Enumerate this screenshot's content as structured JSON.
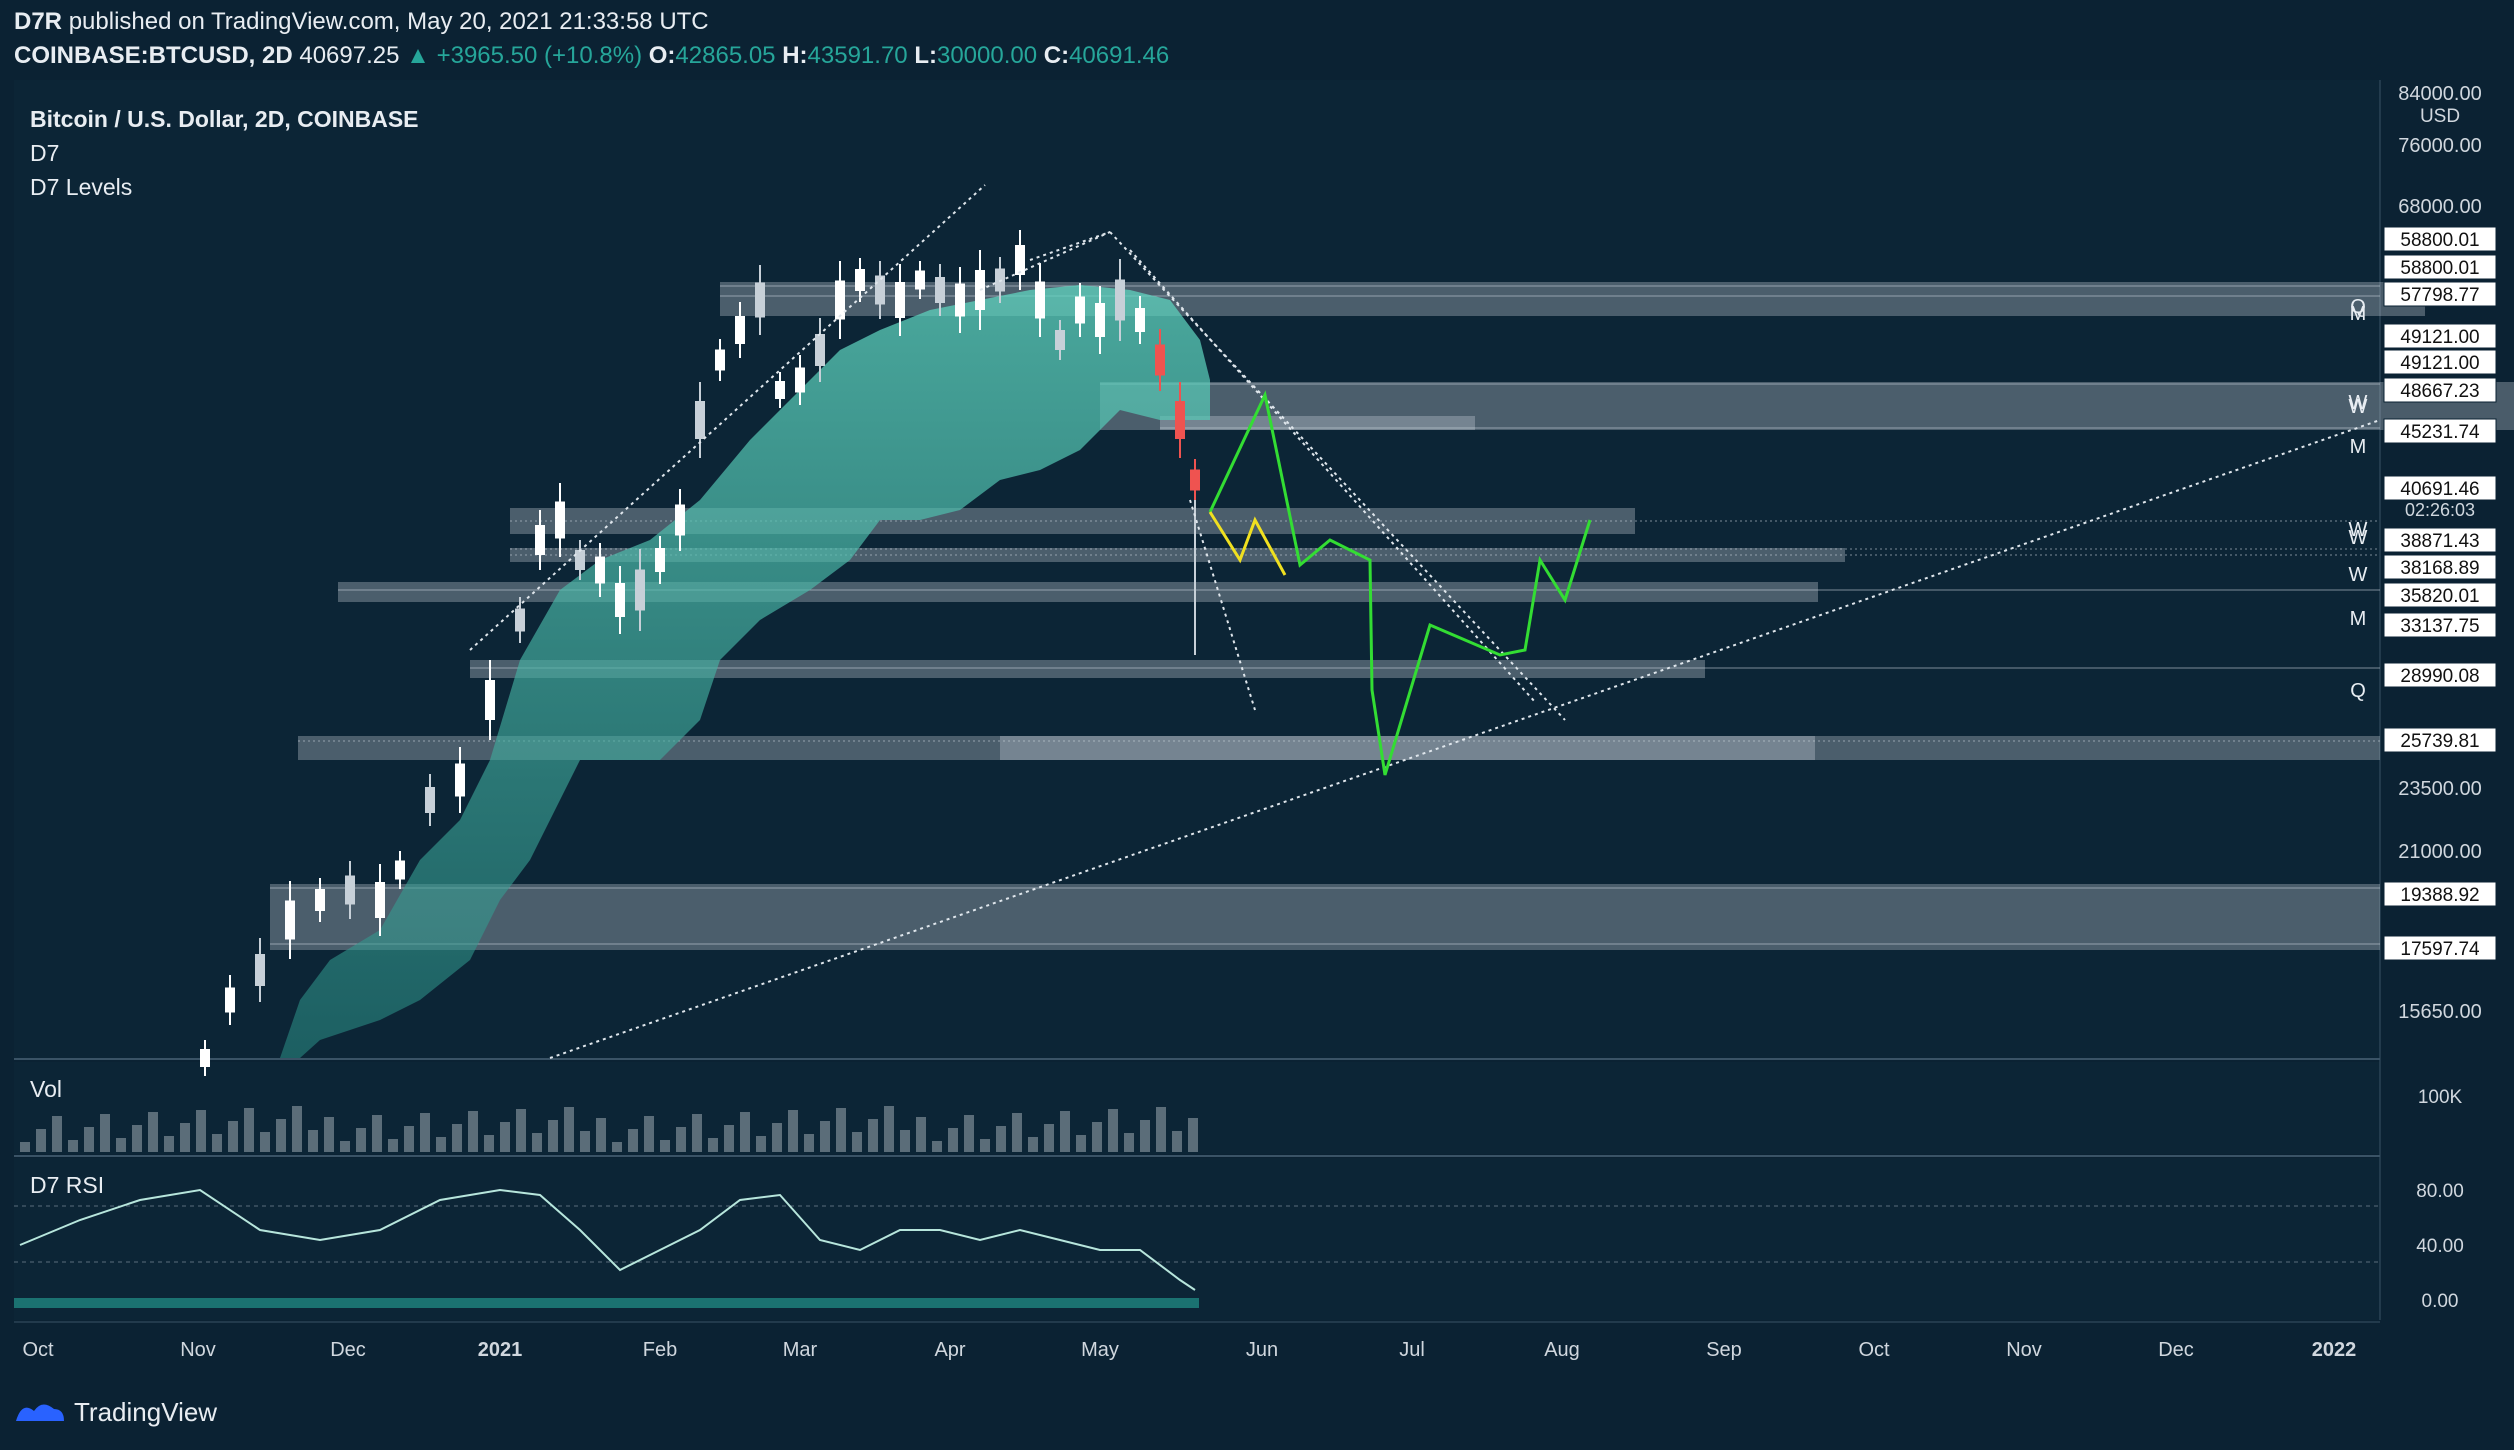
{
  "header": {
    "author": "D7R",
    "published": "published on TradingView.com, May 20, 2021 21:33:58 UTC",
    "symbol": "COINBASE:BTCUSD, 2D",
    "last": "40697.25",
    "change": "+3965.50 (+10.8%)",
    "o_label": "O:",
    "o": "42865.05",
    "h_label": "H:",
    "h": "43591.70",
    "l_label": "L:",
    "l": "30000.00",
    "c_label": "C:",
    "c": "40691.46"
  },
  "legend": {
    "title": "Bitcoin / U.S. Dollar, 2D, COINBASE",
    "ind1": "D7",
    "ind2": "D7 Levels",
    "vol": "Vol",
    "rsi": "D7 RSI"
  },
  "footer": {
    "brand": "TradingView"
  },
  "colors": {
    "bg": "#0b2233",
    "up": "#26a69a",
    "down": "#ef5350",
    "cloud": "#4fc3b0",
    "forecast_green": "#33dd33",
    "forecast_yellow": "#f0e020"
  },
  "chart_data": {
    "type": "candlestick",
    "currency": "USD",
    "y_axis_ticks": [
      "84000.00",
      "76000.00",
      "68000.00",
      "23500.00",
      "21000.00",
      "15650.00"
    ],
    "price_labels": [
      "58800.01",
      "58800.01",
      "57798.77",
      "49121.00",
      "49121.00",
      "48667.23",
      "45231.74",
      "40691.46",
      "38871.43",
      "38168.89",
      "35820.01",
      "33137.75",
      "28990.08",
      "25739.81",
      "19388.92",
      "17597.74"
    ],
    "countdown": "02:26:03",
    "level_markers": [
      "Q",
      "M",
      "W",
      "W",
      "M",
      "W",
      "W",
      "W",
      "M",
      "Q"
    ],
    "x_axis_ticks": [
      "Oct",
      "Nov",
      "Dec",
      "2021",
      "Feb",
      "Mar",
      "Apr",
      "May",
      "Jun",
      "Jul",
      "Aug",
      "Sep",
      "Oct",
      "Nov",
      "Dec",
      "2022"
    ],
    "volume_axis": [
      "100K"
    ],
    "rsi_axis": [
      "80.00",
      "40.00",
      "0.00"
    ],
    "last_candle": {
      "open": 42865.05,
      "high": 43591.7,
      "low": 30000.0,
      "close": 40691.46
    }
  }
}
